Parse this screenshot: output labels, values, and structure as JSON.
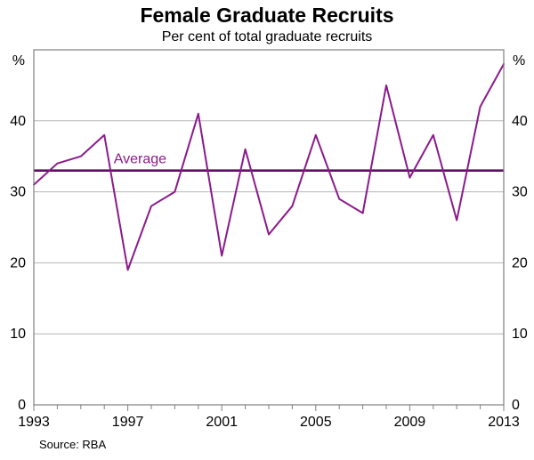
{
  "chart_data": {
    "type": "line",
    "title": "Female Graduate Recruits",
    "subtitle": "Per cent of total graduate recruits",
    "unit": "%",
    "x": [
      1993,
      1994,
      1995,
      1996,
      1997,
      1998,
      1999,
      2000,
      2001,
      2002,
      2003,
      2004,
      2005,
      2006,
      2007,
      2008,
      2009,
      2010,
      2011,
      2012,
      2013
    ],
    "series": [
      {
        "name": "Female graduate recruits",
        "values": [
          31,
          34,
          35,
          38,
          19,
          28,
          30,
          41,
          21,
          36,
          24,
          28,
          38,
          29,
          27,
          45,
          32,
          38,
          26,
          42,
          48
        ]
      }
    ],
    "average": {
      "label": "Average",
      "value": 33,
      "label_x": 1996.4
    },
    "ylim": [
      0,
      50
    ],
    "yticks": [
      0,
      10,
      20,
      30,
      40
    ],
    "xticks_labeled": [
      1993,
      1997,
      2001,
      2005,
      2009,
      2013
    ],
    "grid": true,
    "source": "Source: RBA",
    "colors": {
      "line": "#8b1a8b",
      "average": "#5e1060",
      "grid": "#b5b5b5",
      "axis": "#7f7f7f"
    }
  }
}
